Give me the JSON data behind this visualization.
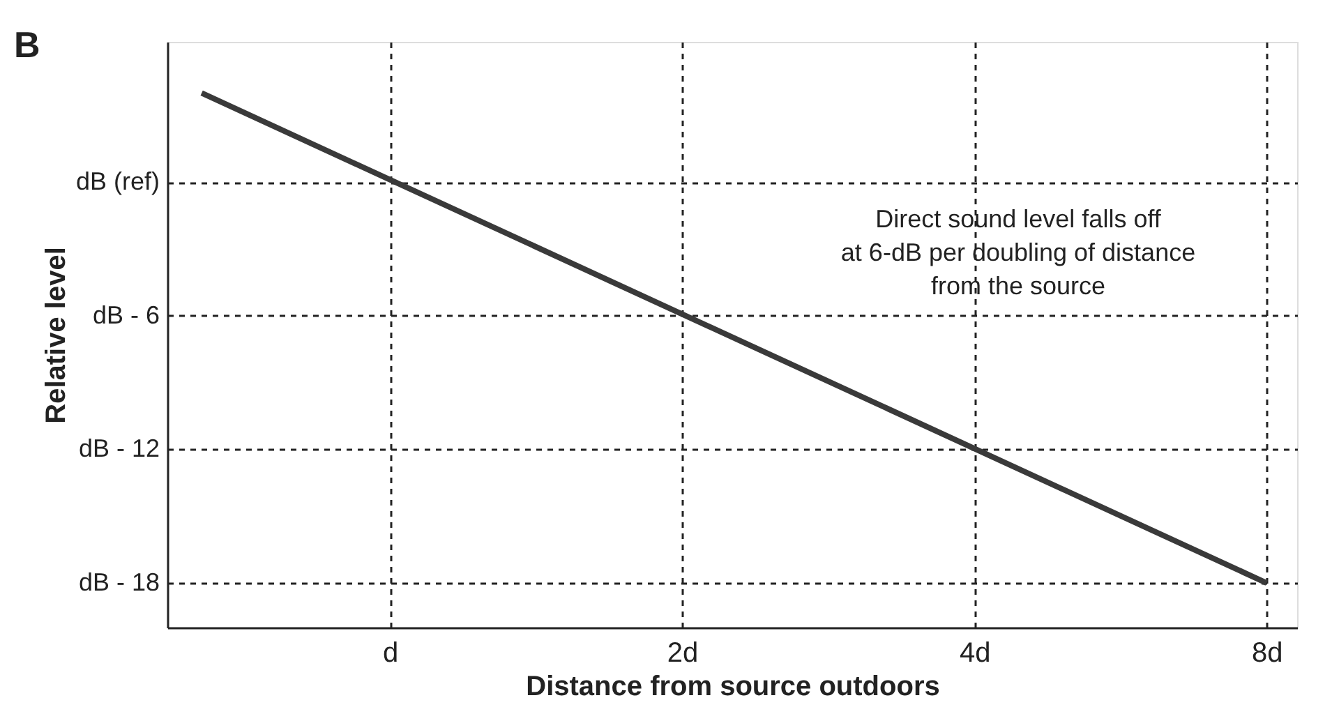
{
  "chart_data": {
    "type": "line",
    "xlabel": "Distance from source outdoors",
    "ylabel": "Relative level",
    "x": [
      0.64,
      8
    ],
    "log": "x",
    "series": [
      {
        "color": "#3a3a3a",
        "values": [
          4,
          -18
        ]
      }
    ],
    "xlim": [
      0.59,
      8.6
    ],
    "xticks": [
      {
        "value": 1,
        "label": "d"
      },
      {
        "value": 2,
        "label": "2d"
      },
      {
        "value": 4,
        "label": "4d"
      },
      {
        "value": 8,
        "label": "8d"
      }
    ],
    "ylim": [
      -20,
      6.3
    ],
    "yticks": [
      {
        "value": 0,
        "label": "dB (ref)"
      },
      {
        "value": -6,
        "label": "dB - 6"
      },
      {
        "value": -12,
        "label": "dB - 12"
      },
      {
        "value": -18,
        "label": "dB - 18"
      }
    ],
    "grid": true,
    "marker": "none",
    "line_style": "solid",
    "annotations": [
      "B",
      "Direct sound level falls off\nat 6-dB per doubling of distance\nfrom the source"
    ]
  }
}
